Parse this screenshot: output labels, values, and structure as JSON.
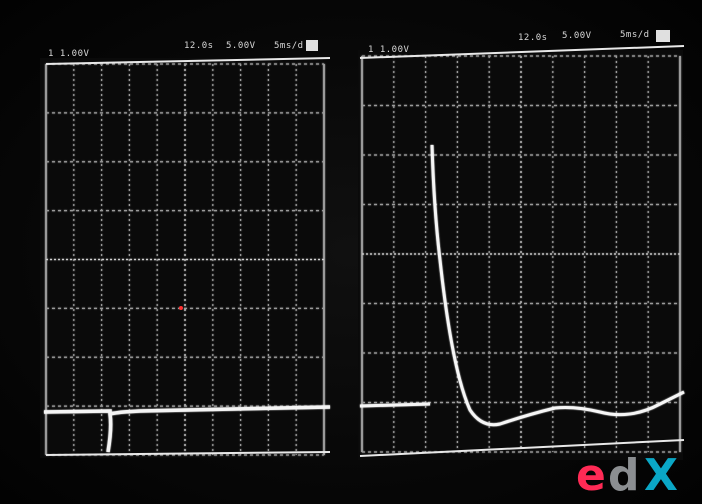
{
  "left_screen": {
    "channel_readout": "1 1.00V",
    "time_readout": "12.0s",
    "volts_readout": "5.00V",
    "trigger_readout": "5ms/d"
  },
  "right_screen": {
    "channel_readout": "1 1.00V",
    "time_readout": "12.0s",
    "volts_readout": "5.00V",
    "trigger_readout": "5ms/d"
  },
  "logo": {
    "e": "e",
    "d": "d",
    "x": "X",
    "colors": {
      "e": "#ff2a55",
      "d": "#8b8e91",
      "x": "#0aa7c6"
    }
  }
}
